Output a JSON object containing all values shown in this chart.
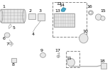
{
  "bg_color": "#ffffff",
  "component_color": "#d0d0d0",
  "highlight_color": "#4aa8c8",
  "dgray": "#a0a0a0",
  "lgray": "#e8e8e8"
}
